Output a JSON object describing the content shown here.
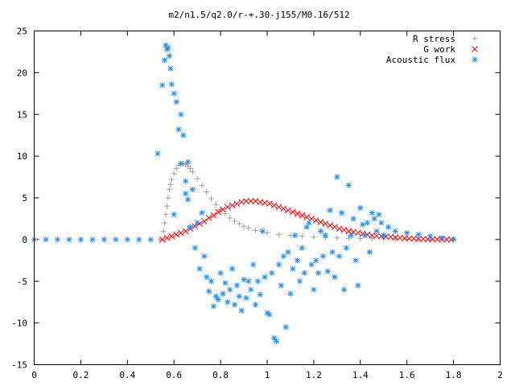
{
  "chart_data": {
    "type": "scatter",
    "title": "m2/n1.5/q2.0/r-+.30-j155/M0.16/512",
    "xlabel": "",
    "ylabel": "",
    "xlim": [
      0,
      2
    ],
    "ylim": [
      -15,
      25
    ],
    "x_ticks": [
      0,
      0.2,
      0.4,
      0.6,
      0.8,
      1,
      1.2,
      1.4,
      1.6,
      1.8,
      2
    ],
    "x_tick_labels": [
      "0",
      "0.2",
      "0.4",
      "0.6",
      "0.8",
      "1",
      "1.2",
      "1.4",
      "1.6",
      "1.8",
      "2"
    ],
    "y_ticks": [
      -15,
      -10,
      -5,
      0,
      5,
      10,
      15,
      20,
      25
    ],
    "y_tick_labels": [
      "-15",
      "-10",
      "-5",
      "0",
      "5",
      "10",
      "15",
      "20",
      "25"
    ],
    "grid": false,
    "legend_position": "top-right",
    "series": [
      {
        "name": "R stress",
        "marker": "plus",
        "color": "#a0a0a0",
        "x": [
          0.54,
          0.555,
          0.56,
          0.565,
          0.57,
          0.575,
          0.58,
          0.585,
          0.59,
          0.6,
          0.61,
          0.62,
          0.63,
          0.64,
          0.65,
          0.66,
          0.67,
          0.68,
          0.7,
          0.72,
          0.74,
          0.76,
          0.78,
          0.8,
          0.82,
          0.84,
          0.86,
          0.88,
          0.9,
          0.92,
          0.95,
          1.0,
          1.05,
          1.1,
          1.15,
          1.2,
          1.25,
          1.3,
          1.35,
          1.4,
          1.45,
          1.5,
          1.55,
          1.6,
          1.65,
          1.7,
          1.75,
          1.8
        ],
        "y": [
          0.0,
          1.0,
          2.0,
          3.0,
          4.0,
          5.0,
          6.0,
          6.6,
          7.2,
          7.9,
          8.5,
          8.9,
          9.1,
          9.1,
          9.0,
          8.8,
          8.5,
          8.1,
          7.3,
          6.5,
          5.7,
          4.9,
          4.2,
          3.6,
          3.1,
          2.6,
          2.2,
          1.9,
          1.6,
          1.4,
          1.1,
          0.8,
          0.6,
          0.5,
          0.4,
          0.3,
          0.25,
          0.2,
          0.15,
          0.12,
          0.1,
          0.08,
          0.06,
          0.04,
          0.03,
          0.02,
          0.01,
          0.0
        ]
      },
      {
        "name": "G work",
        "marker": "cross",
        "color": "#ff0000",
        "x": [
          0.55,
          0.57,
          0.59,
          0.61,
          0.63,
          0.65,
          0.67,
          0.69,
          0.71,
          0.73,
          0.75,
          0.77,
          0.79,
          0.81,
          0.83,
          0.85,
          0.87,
          0.89,
          0.91,
          0.93,
          0.95,
          0.97,
          0.99,
          1.01,
          1.03,
          1.05,
          1.07,
          1.09,
          1.11,
          1.13,
          1.15,
          1.17,
          1.19,
          1.21,
          1.23,
          1.25,
          1.27,
          1.29,
          1.31,
          1.33,
          1.35,
          1.37,
          1.39,
          1.41,
          1.43,
          1.45,
          1.47,
          1.49,
          1.51,
          1.53,
          1.55,
          1.57,
          1.59,
          1.61,
          1.63,
          1.65,
          1.67,
          1.69,
          1.71,
          1.73,
          1.75,
          1.77,
          1.79
        ],
        "y": [
          0.0,
          0.2,
          0.4,
          0.6,
          0.8,
          1.0,
          1.3,
          1.6,
          1.9,
          2.2,
          2.6,
          2.9,
          3.3,
          3.6,
          3.9,
          4.1,
          4.3,
          4.5,
          4.6,
          4.6,
          4.6,
          4.5,
          4.4,
          4.3,
          4.1,
          3.9,
          3.7,
          3.5,
          3.3,
          3.1,
          2.9,
          2.7,
          2.5,
          2.3,
          2.1,
          1.9,
          1.7,
          1.5,
          1.3,
          1.15,
          1.0,
          0.9,
          0.8,
          0.7,
          0.6,
          0.5,
          0.45,
          0.4,
          0.35,
          0.3,
          0.25,
          0.2,
          0.17,
          0.14,
          0.11,
          0.08,
          0.06,
          0.05,
          0.04,
          0.03,
          0.02,
          0.01,
          0.0
        ]
      },
      {
        "name": "Acoustic flux",
        "marker": "star",
        "color": "#1f8fff",
        "x": [
          0.0,
          0.05,
          0.1,
          0.15,
          0.2,
          0.25,
          0.3,
          0.35,
          0.4,
          0.45,
          0.5,
          0.53,
          0.55,
          0.56,
          0.565,
          0.57,
          0.575,
          0.58,
          0.585,
          0.59,
          0.6,
          0.6,
          0.61,
          0.62,
          0.63,
          0.63,
          0.64,
          0.65,
          0.65,
          0.66,
          0.66,
          0.67,
          0.68,
          0.69,
          0.7,
          0.71,
          0.72,
          0.73,
          0.74,
          0.75,
          0.76,
          0.77,
          0.78,
          0.79,
          0.8,
          0.81,
          0.82,
          0.83,
          0.84,
          0.85,
          0.86,
          0.87,
          0.88,
          0.89,
          0.9,
          0.91,
          0.92,
          0.93,
          0.94,
          0.95,
          0.96,
          0.97,
          0.98,
          0.99,
          1.0,
          1.01,
          1.02,
          1.03,
          1.04,
          1.05,
          1.06,
          1.07,
          1.08,
          1.09,
          1.1,
          1.11,
          1.12,
          1.13,
          1.14,
          1.15,
          1.16,
          1.17,
          1.18,
          1.19,
          1.2,
          1.21,
          1.22,
          1.23,
          1.24,
          1.25,
          1.26,
          1.27,
          1.28,
          1.29,
          1.3,
          1.31,
          1.32,
          1.33,
          1.34,
          1.35,
          1.36,
          1.37,
          1.38,
          1.39,
          1.4,
          1.41,
          1.42,
          1.43,
          1.44,
          1.45,
          1.46,
          1.47,
          1.48,
          1.49,
          1.5,
          1.52,
          1.55,
          1.6,
          1.65,
          1.7,
          1.75,
          1.8
        ],
        "y": [
          0.0,
          0.0,
          0.0,
          0.0,
          0.0,
          0.0,
          0.0,
          0.0,
          0.0,
          0.0,
          0.0,
          10.3,
          18.5,
          21.5,
          23.3,
          22.8,
          23.0,
          22.0,
          20.5,
          18.6,
          17.5,
          3.0,
          16.5,
          13.2,
          15.0,
          9.1,
          12.5,
          7.0,
          5.5,
          9.3,
          4.8,
          1.5,
          6.0,
          -1.0,
          2.0,
          -3.5,
          3.2,
          -2.0,
          -4.5,
          -6.2,
          -5.0,
          -8.0,
          -6.8,
          -7.2,
          -4.0,
          -6.5,
          -5.2,
          -7.5,
          -6.0,
          -3.5,
          -7.8,
          -5.5,
          -6.8,
          -8.5,
          -4.8,
          -7.0,
          -5.0,
          -6.0,
          -3.0,
          -7.8,
          -5.0,
          -6.6,
          1.0,
          -4.5,
          -8.8,
          -9.0,
          -4.0,
          -11.8,
          -12.2,
          -3.0,
          -5.5,
          -2.0,
          -10.5,
          -1.5,
          -6.5,
          -3.5,
          0.5,
          -2.5,
          -5.0,
          -1.0,
          -4.0,
          1.5,
          2.0,
          -3.0,
          -6.0,
          -2.5,
          -4.0,
          1.0,
          -2.0,
          0.5,
          -3.8,
          3.5,
          -1.5,
          -4.5,
          7.5,
          -2.0,
          3.2,
          -6.0,
          -1.0,
          6.5,
          0.5,
          2.5,
          -2.5,
          -5.5,
          3.8,
          1.8,
          0.5,
          2.0,
          -1.5,
          3.2,
          2.5,
          1.0,
          3.0,
          2.0,
          0.5,
          1.5,
          1.0,
          0.8,
          0.6,
          0.4,
          0.2,
          0.05
        ]
      }
    ]
  }
}
